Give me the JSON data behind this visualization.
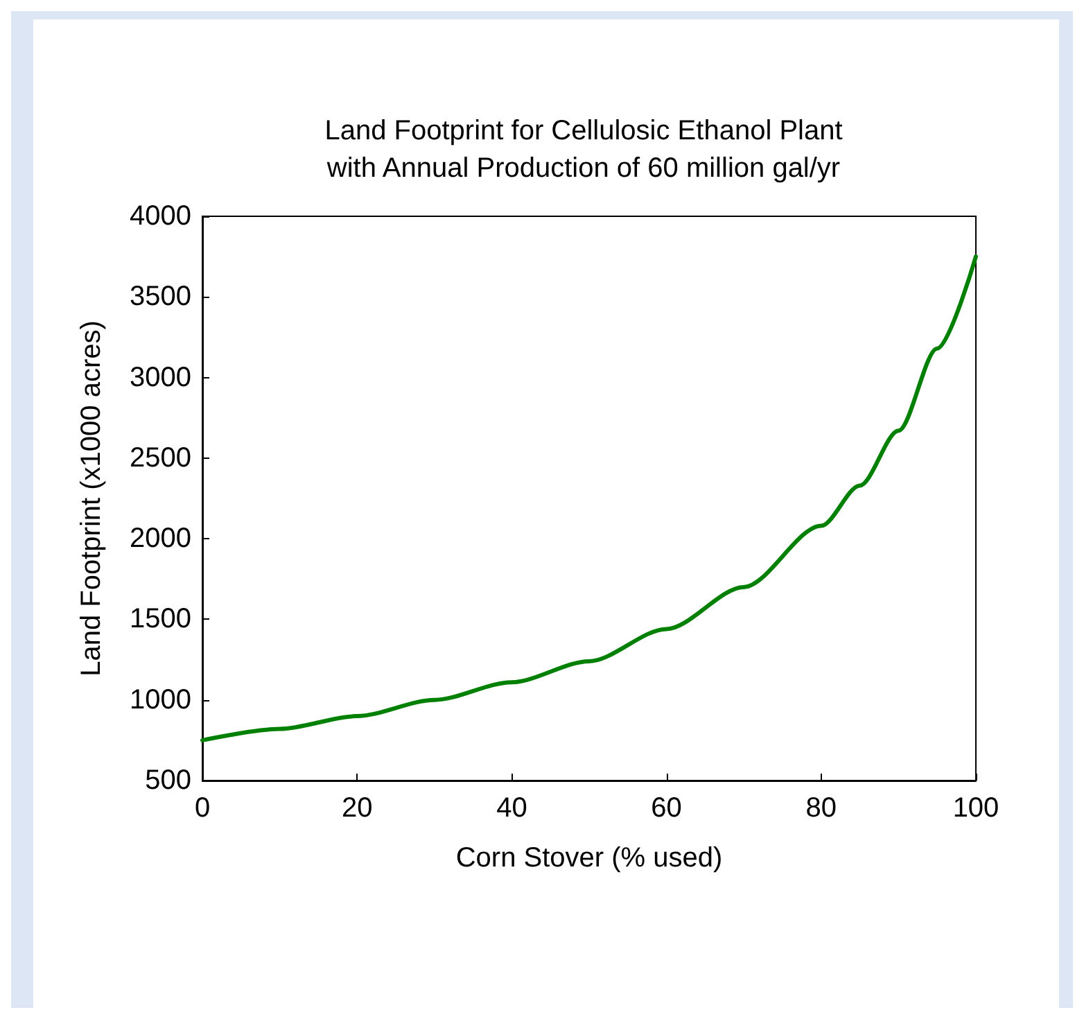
{
  "chart_data": {
    "type": "line",
    "title": "Land Footprint for Cellulosic Ethanol Plant\nwith Annual Production of 60 million gal/yr",
    "xlabel": "Corn Stover (% used)",
    "ylabel": "Land Footprint (x1000 acres)",
    "x": [
      0,
      10,
      20,
      30,
      40,
      50,
      60,
      70,
      80,
      85,
      90,
      95,
      100
    ],
    "series": [
      {
        "color": "#008000",
        "values": [
          750,
          820,
          900,
          1000,
          1110,
          1240,
          1440,
          1700,
          2080,
          2330,
          2670,
          3180,
          3750
        ]
      }
    ],
    "xlim": [
      0,
      100
    ],
    "xticks": [
      0,
      20,
      40,
      60,
      80,
      100
    ],
    "ylim": [
      500,
      4000
    ],
    "yticks": [
      500,
      1000,
      1500,
      2000,
      2500,
      3000,
      3500,
      4000
    ],
    "grid": false,
    "marker": "none",
    "line_style": "solid"
  }
}
